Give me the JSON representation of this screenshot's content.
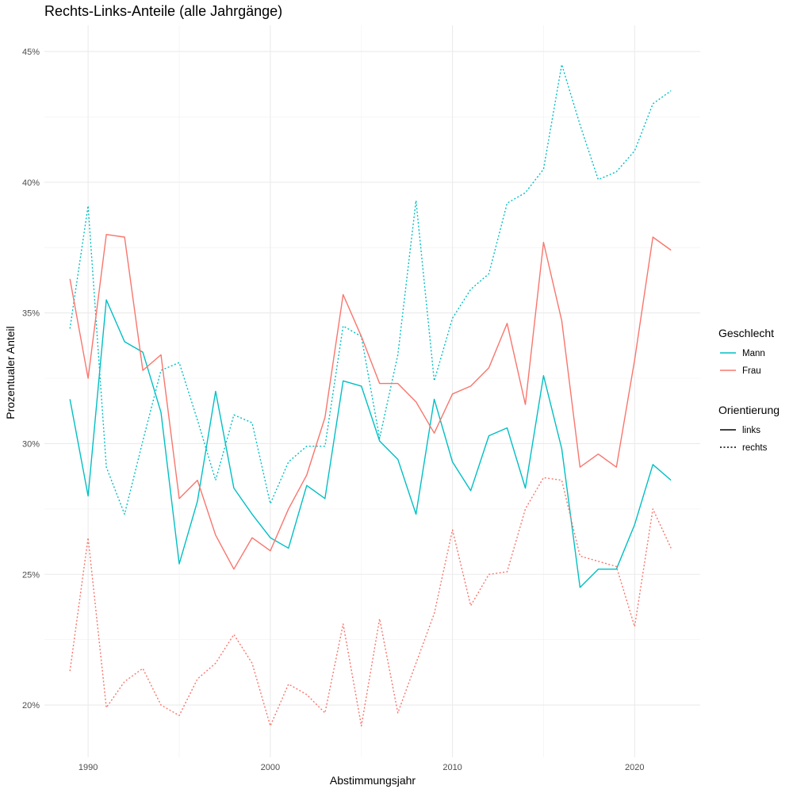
{
  "chart_data": {
    "type": "line",
    "title": "Rechts-Links-Anteile (alle Jahrgänge)",
    "xlabel": "Abstimmungsjahr",
    "ylabel": "Prozentualer Anteil",
    "xlim": [
      1987.6,
      2023.6
    ],
    "ylim": [
      18.0,
      46.0
    ],
    "x_ticks": [
      1990,
      2000,
      2010,
      2020
    ],
    "x_tick_labels": [
      "1990",
      "2000",
      "2010",
      "2020"
    ],
    "y_ticks": [
      20,
      25,
      30,
      35,
      40,
      45
    ],
    "y_tick_labels": [
      "20%",
      "25%",
      "30%",
      "35%",
      "40%",
      "45%"
    ],
    "grid": true,
    "legend": {
      "placement": "right",
      "color_title": "Geschlecht",
      "color_entries": [
        {
          "label": "Mann",
          "color": "#00BFC4"
        },
        {
          "label": "Frau",
          "color": "#F8766D"
        }
      ],
      "linetype_title": "Orientierung",
      "linetype_entries": [
        {
          "label": "links",
          "dash": "solid"
        },
        {
          "label": "rechts",
          "dash": "dotted"
        }
      ]
    },
    "x": [
      1989,
      1990,
      1991,
      1992,
      1993,
      1994,
      1995,
      1996,
      1997,
      1998,
      1999,
      2000,
      2001,
      2002,
      2003,
      2004,
      2005,
      2006,
      2007,
      2008,
      2009,
      2010,
      2011,
      2012,
      2013,
      2014,
      2015,
      2016,
      2017,
      2018,
      2019,
      2020,
      2021,
      2022
    ],
    "series": [
      {
        "name": "Mann links",
        "geschlecht": "Mann",
        "orientierung": "links",
        "color": "#00BFC4",
        "dash": "solid",
        "values": [
          31.7,
          28.0,
          35.5,
          33.9,
          33.5,
          31.2,
          25.4,
          27.8,
          32.0,
          28.3,
          27.3,
          26.4,
          26.0,
          28.4,
          27.9,
          32.4,
          32.2,
          30.1,
          29.4,
          27.3,
          31.7,
          29.3,
          28.2,
          30.3,
          30.6,
          28.3,
          32.6,
          29.8,
          24.5,
          25.2,
          25.2,
          26.9,
          29.2,
          28.6
        ]
      },
      {
        "name": "Mann rechts",
        "geschlecht": "Mann",
        "orientierung": "rechts",
        "color": "#00BFC4",
        "dash": "dotted",
        "values": [
          34.4,
          39.1,
          29.1,
          27.3,
          30.1,
          32.8,
          33.1,
          30.9,
          28.6,
          31.1,
          30.8,
          27.7,
          29.3,
          29.9,
          29.9,
          34.5,
          34.1,
          30.2,
          33.4,
          39.3,
          32.4,
          34.8,
          35.9,
          36.5,
          39.2,
          39.6,
          40.5,
          44.5,
          42.2,
          40.1,
          40.4,
          41.2,
          43.0,
          43.5
        ]
      },
      {
        "name": "Frau links",
        "geschlecht": "Frau",
        "orientierung": "links",
        "color": "#F8766D",
        "dash": "solid",
        "values": [
          36.3,
          32.5,
          38.0,
          37.9,
          32.8,
          33.4,
          27.9,
          28.6,
          26.5,
          25.2,
          26.4,
          25.9,
          27.5,
          28.8,
          31.0,
          35.7,
          34.1,
          32.3,
          32.3,
          31.6,
          30.4,
          31.9,
          32.2,
          32.9,
          34.6,
          31.5,
          37.7,
          34.7,
          29.1,
          29.6,
          29.1,
          33.2,
          37.9,
          37.4
        ]
      },
      {
        "name": "Frau rechts",
        "geschlecht": "Frau",
        "orientierung": "rechts",
        "color": "#F8766D",
        "dash": "dotted",
        "values": [
          21.3,
          26.4,
          19.9,
          20.9,
          21.4,
          20.0,
          19.6,
          21.0,
          21.6,
          22.7,
          21.6,
          19.2,
          20.8,
          20.4,
          19.7,
          23.1,
          19.2,
          23.3,
          19.7,
          21.6,
          23.5,
          26.7,
          23.8,
          25.0,
          25.1,
          27.5,
          28.7,
          28.6,
          25.7,
          25.5,
          25.3,
          23.0,
          27.5,
          26.0
        ]
      }
    ]
  }
}
